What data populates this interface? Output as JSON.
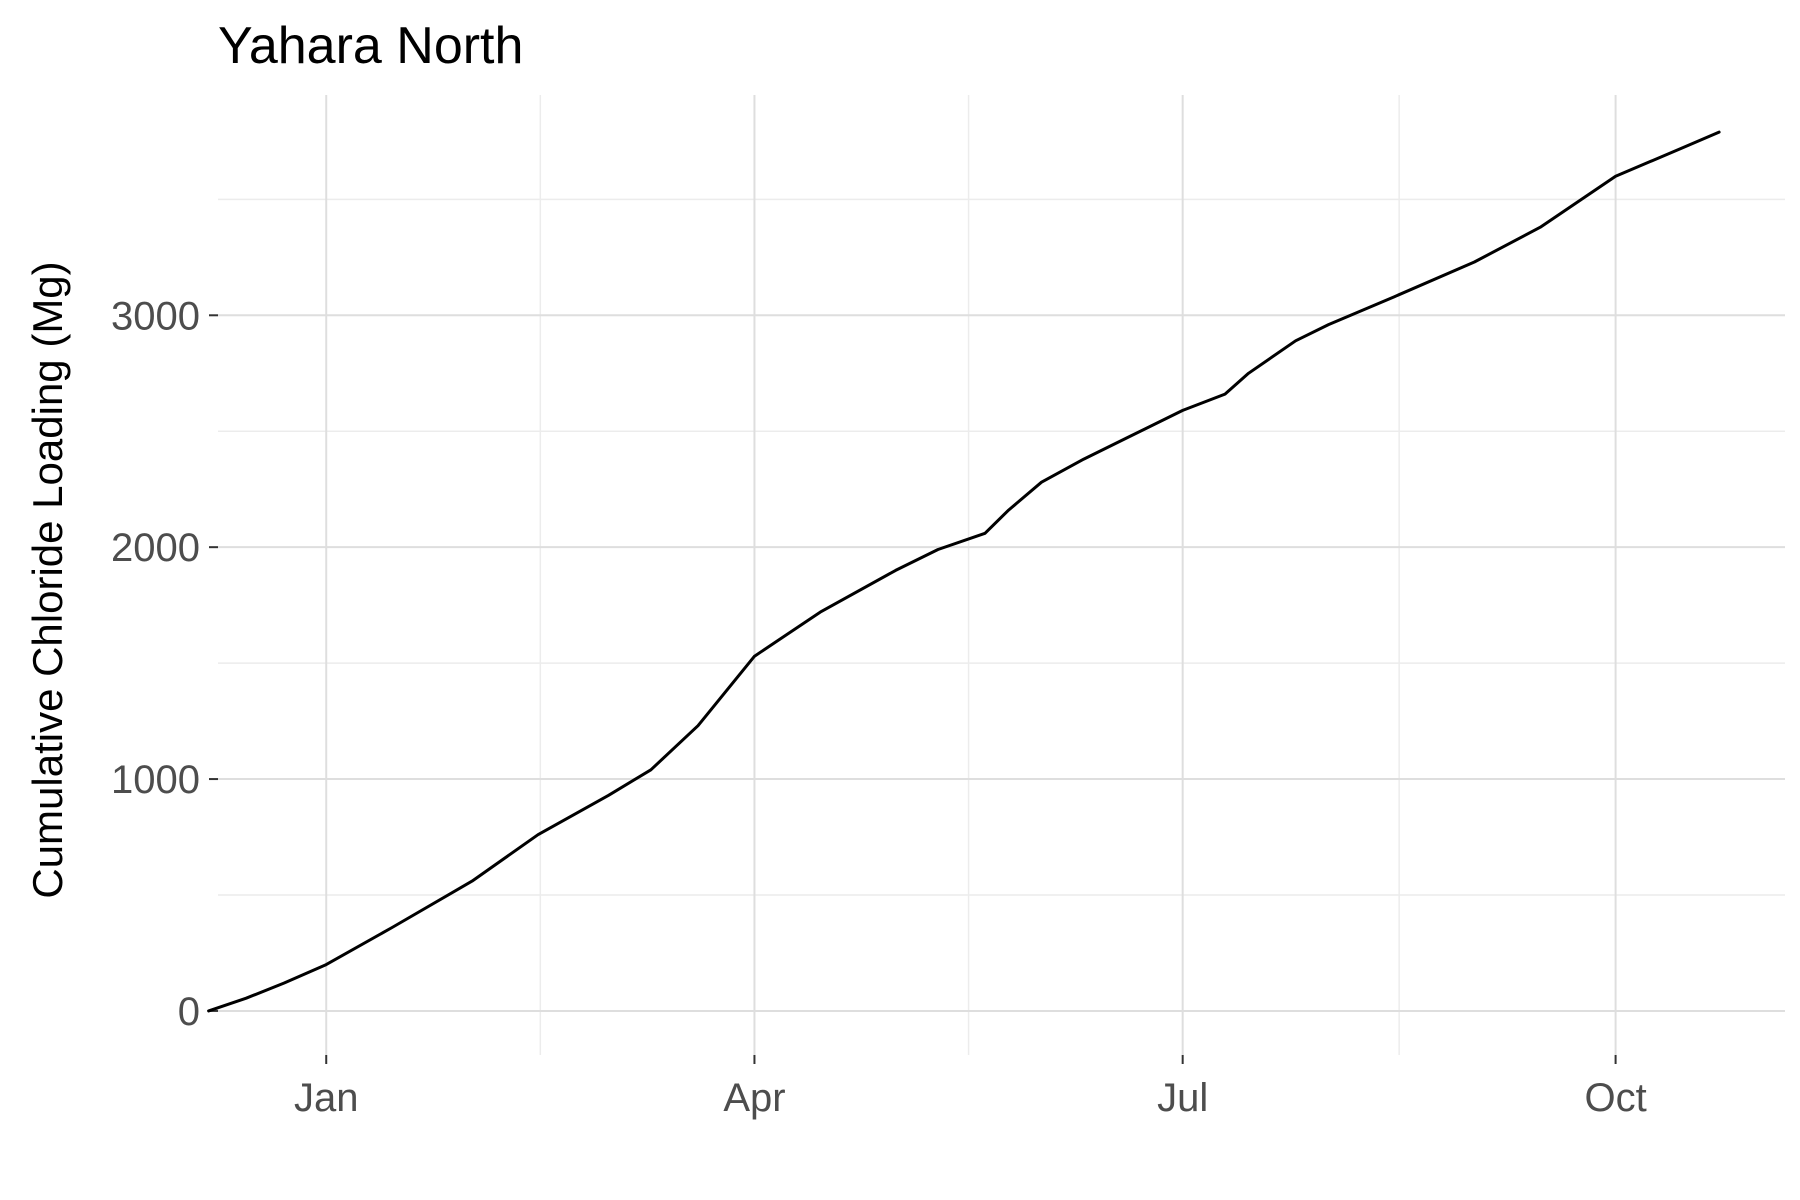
{
  "chart_data": {
    "type": "line",
    "title": "Yahara North",
    "xlabel": "",
    "ylabel": "Cumulative Chloride Loading (Mg)",
    "x_ticks": [
      {
        "label": "Jan",
        "date": "2020-01-01"
      },
      {
        "label": "Apr",
        "date": "2020-04-01"
      },
      {
        "label": "Jul",
        "date": "2020-07-01"
      },
      {
        "label": "Oct",
        "date": "2020-10-01"
      }
    ],
    "y_ticks": [
      0,
      1000,
      2000,
      3000
    ],
    "xlim": [
      "2019-12-09",
      "2020-11-06"
    ],
    "ylim": [
      -190,
      3950
    ],
    "grid": true,
    "legend": "none",
    "series": [
      {
        "x": [
          "2019-12-07",
          "2019-12-15",
          "2019-12-23",
          "2020-01-01",
          "2020-01-15",
          "2020-02-01",
          "2020-02-15",
          "2020-03-01",
          "2020-03-10",
          "2020-03-20",
          "2020-04-01",
          "2020-04-15",
          "2020-05-01",
          "2020-05-10",
          "2020-05-20",
          "2020-05-25",
          "2020-06-01",
          "2020-06-10",
          "2020-06-20",
          "2020-07-01",
          "2020-07-10",
          "2020-07-15",
          "2020-07-25",
          "2020-08-01",
          "2020-08-15",
          "2020-09-01",
          "2020-09-15",
          "2020-10-01",
          "2020-10-15",
          "2020-10-23"
        ],
        "y": [
          0,
          55,
          120,
          200,
          360,
          560,
          760,
          930,
          1040,
          1230,
          1530,
          1720,
          1900,
          1990,
          2060,
          2160,
          2280,
          2380,
          2480,
          2590,
          2660,
          2750,
          2890,
          2960,
          3080,
          3230,
          3380,
          3600,
          3720,
          3790
        ]
      }
    ]
  }
}
